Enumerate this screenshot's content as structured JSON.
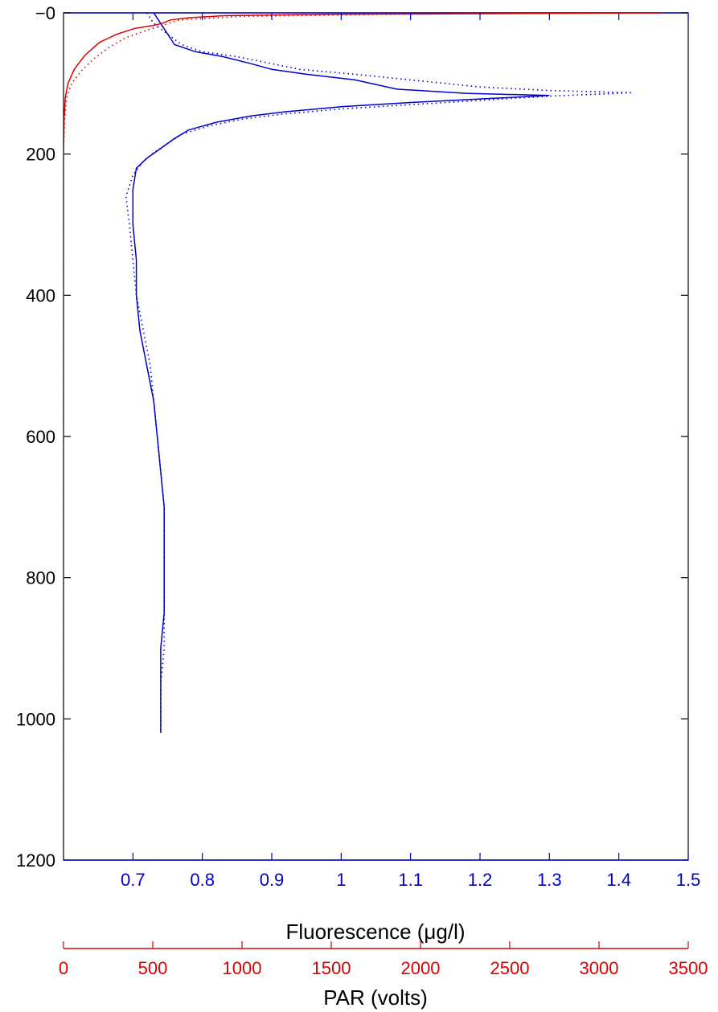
{
  "chart_data": {
    "type": "line",
    "title": "",
    "y_axis": {
      "range": [
        0,
        1200
      ],
      "reversed": true,
      "ticks": [
        0,
        200,
        400,
        600,
        800,
        1000,
        1200
      ],
      "tick_labels": [
        "−0",
        "200",
        "400",
        "600",
        "800",
        "1000",
        "1200"
      ],
      "label": ""
    },
    "x_axes": [
      {
        "id": "fluorescence",
        "label": "Fluorescence (μg/l)",
        "color": "#0000cc",
        "range": [
          0.6,
          1.5
        ],
        "ticks": [
          0.7,
          0.8,
          0.9,
          1.0,
          1.1,
          1.2,
          1.3,
          1.4,
          1.5
        ],
        "tick_labels": [
          "0.7",
          "0.8",
          "0.9",
          "1",
          "1.1",
          "1.2",
          "1.3",
          "1.4",
          "1.5"
        ]
      },
      {
        "id": "par",
        "label": "PAR (volts)",
        "color": "#dd0000",
        "range": [
          0,
          3500
        ],
        "ticks": [
          0,
          500,
          1000,
          1500,
          2000,
          2500,
          3000,
          3500
        ],
        "tick_labels": [
          "0",
          "500",
          "1000",
          "1500",
          "2000",
          "2500",
          "3000",
          "3500"
        ]
      }
    ],
    "grid": false,
    "series": [
      {
        "axis": "fluorescence",
        "style": "solid",
        "color": "#0000cc",
        "points": [
          [
            0.73,
            0
          ],
          [
            0.74,
            15
          ],
          [
            0.75,
            30
          ],
          [
            0.76,
            45
          ],
          [
            0.79,
            55
          ],
          [
            0.83,
            62
          ],
          [
            0.87,
            72
          ],
          [
            0.9,
            80
          ],
          [
            0.95,
            87
          ],
          [
            1.02,
            95
          ],
          [
            1.08,
            108
          ],
          [
            1.18,
            114
          ],
          [
            1.3,
            117
          ],
          [
            1.22,
            121
          ],
          [
            1.1,
            127
          ],
          [
            1.0,
            133
          ],
          [
            0.92,
            140
          ],
          [
            0.87,
            146
          ],
          [
            0.82,
            155
          ],
          [
            0.78,
            166
          ],
          [
            0.76,
            178
          ],
          [
            0.74,
            192
          ],
          [
            0.72,
            206
          ],
          [
            0.705,
            220
          ],
          [
            0.7,
            250
          ],
          [
            0.7,
            300
          ],
          [
            0.705,
            350
          ],
          [
            0.705,
            400
          ],
          [
            0.71,
            450
          ],
          [
            0.72,
            500
          ],
          [
            0.73,
            550
          ],
          [
            0.735,
            600
          ],
          [
            0.74,
            650
          ],
          [
            0.745,
            700
          ],
          [
            0.745,
            750
          ],
          [
            0.745,
            800
          ],
          [
            0.745,
            850
          ],
          [
            0.74,
            900
          ],
          [
            0.74,
            950
          ],
          [
            0.74,
            1000
          ],
          [
            0.74,
            1020
          ]
        ]
      },
      {
        "axis": "fluorescence",
        "style": "dotted",
        "color": "#0000cc",
        "points": [
          [
            0.72,
            0
          ],
          [
            0.73,
            15
          ],
          [
            0.75,
            30
          ],
          [
            0.77,
            45
          ],
          [
            0.8,
            55
          ],
          [
            0.85,
            62
          ],
          [
            0.9,
            72
          ],
          [
            0.94,
            80
          ],
          [
            1.02,
            87
          ],
          [
            1.1,
            95
          ],
          [
            1.2,
            105
          ],
          [
            1.3,
            110
          ],
          [
            1.42,
            113
          ],
          [
            1.3,
            118
          ],
          [
            1.2,
            124
          ],
          [
            1.1,
            130
          ],
          [
            1.0,
            136
          ],
          [
            0.92,
            143
          ],
          [
            0.86,
            150
          ],
          [
            0.81,
            160
          ],
          [
            0.77,
            172
          ],
          [
            0.75,
            185
          ],
          [
            0.73,
            198
          ],
          [
            0.715,
            210
          ],
          [
            0.7,
            230
          ],
          [
            0.69,
            260
          ],
          [
            0.695,
            300
          ],
          [
            0.7,
            350
          ],
          [
            0.705,
            400
          ],
          [
            0.715,
            450
          ],
          [
            0.725,
            500
          ],
          [
            0.73,
            550
          ],
          [
            0.735,
            600
          ],
          [
            0.74,
            650
          ],
          [
            0.745,
            700
          ],
          [
            0.745,
            750
          ],
          [
            0.745,
            800
          ],
          [
            0.745,
            850
          ],
          [
            0.745,
            900
          ],
          [
            0.74,
            950
          ],
          [
            0.74,
            1000
          ],
          [
            0.74,
            1020
          ]
        ]
      },
      {
        "axis": "par",
        "style": "solid",
        "color": "#dd0000",
        "points": [
          [
            3350,
            0
          ],
          [
            1500,
            2
          ],
          [
            900,
            4
          ],
          [
            700,
            7
          ],
          [
            600,
            10
          ],
          [
            550,
            15
          ],
          [
            500,
            18
          ],
          [
            400,
            22
          ],
          [
            300,
            30
          ],
          [
            200,
            42
          ],
          [
            120,
            60
          ],
          [
            60,
            80
          ],
          [
            25,
            100
          ],
          [
            10,
            120
          ],
          [
            3,
            150
          ],
          [
            0,
            200
          ],
          [
            0,
            1200
          ]
        ]
      },
      {
        "axis": "par",
        "style": "dotted",
        "color": "#dd0000",
        "points": [
          [
            3000,
            0
          ],
          [
            1800,
            2
          ],
          [
            1000,
            5
          ],
          [
            650,
            10
          ],
          [
            550,
            18
          ],
          [
            450,
            26
          ],
          [
            350,
            35
          ],
          [
            260,
            48
          ],
          [
            170,
            65
          ],
          [
            100,
            82
          ],
          [
            45,
            100
          ],
          [
            18,
            120
          ],
          [
            6,
            150
          ],
          [
            0,
            200
          ],
          [
            0,
            1200
          ]
        ]
      }
    ]
  }
}
